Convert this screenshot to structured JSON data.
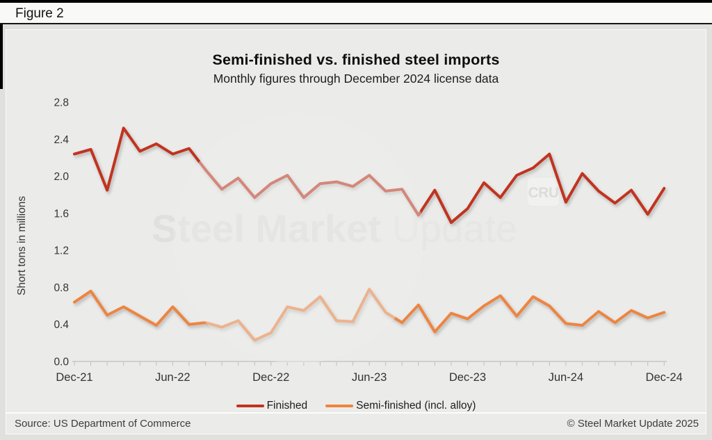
{
  "figure_label": "Figure 2",
  "chart_data": {
    "type": "line",
    "title": "Semi-finished vs. finished steel imports",
    "subtitle": "Monthly figures through December 2024 license data",
    "ylabel": "Short tons in millions",
    "ylim": [
      0.0,
      2.8
    ],
    "ytick_step": 0.4,
    "grid": false,
    "legend_position": "bottom",
    "xtick_every": 6,
    "xticklabels_visible": [
      "Dec-21",
      "Jun-22",
      "Dec-22",
      "Jun-23",
      "Dec-23",
      "Jun-24",
      "Dec-24"
    ],
    "x": [
      "Dec-21",
      "Jan-22",
      "Feb-22",
      "Mar-22",
      "Apr-22",
      "May-22",
      "Jun-22",
      "Jul-22",
      "Aug-22",
      "Sep-22",
      "Oct-22",
      "Nov-22",
      "Dec-22",
      "Jan-23",
      "Feb-23",
      "Mar-23",
      "Apr-23",
      "May-23",
      "Jun-23",
      "Jul-23",
      "Aug-23",
      "Sep-23",
      "Oct-23",
      "Nov-23",
      "Dec-23",
      "Jan-24",
      "Feb-24",
      "Mar-24",
      "Apr-24",
      "May-24",
      "Jun-24",
      "Jul-24",
      "Aug-24",
      "Sep-24",
      "Oct-24",
      "Nov-24",
      "Dec-24"
    ],
    "series": [
      {
        "name": "Finished",
        "color": "#c1331f",
        "values": [
          2.24,
          2.29,
          1.85,
          2.52,
          2.27,
          2.35,
          2.24,
          2.3,
          2.07,
          1.86,
          1.98,
          1.77,
          1.92,
          2.01,
          1.77,
          1.92,
          1.94,
          1.89,
          2.01,
          1.84,
          1.86,
          1.58,
          1.85,
          1.5,
          1.65,
          1.93,
          1.77,
          2.01,
          2.09,
          2.24,
          1.72,
          2.03,
          1.84,
          1.71,
          1.85,
          1.59,
          1.87
        ]
      },
      {
        "name": "Semi-finished (incl. alloy)",
        "color": "#ee8440",
        "values": [
          0.64,
          0.76,
          0.5,
          0.59,
          0.49,
          0.39,
          0.59,
          0.4,
          0.42,
          0.37,
          0.44,
          0.23,
          0.31,
          0.59,
          0.55,
          0.7,
          0.44,
          0.43,
          0.78,
          0.53,
          0.42,
          0.61,
          0.32,
          0.52,
          0.46,
          0.6,
          0.71,
          0.49,
          0.7,
          0.6,
          0.41,
          0.39,
          0.54,
          0.42,
          0.55,
          0.47,
          0.53
        ]
      }
    ]
  },
  "watermark": {
    "text_bold": "Steel Market",
    "text_light": " Update",
    "badge": "CRU"
  },
  "footer": {
    "source": "Source: US Department of Commerce",
    "copyright": "© Steel Market Update 2025"
  },
  "colors": {
    "finished_line": "#c1331f",
    "semifinished_line": "#ee8440",
    "axis": "#c6c6c4",
    "tick_text": "#333333"
  }
}
